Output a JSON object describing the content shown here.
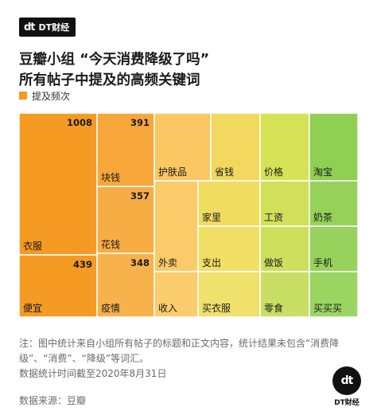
{
  "brand": {
    "mark": "dt",
    "name": "DT财经"
  },
  "chart_data": {
    "type": "treemap",
    "title_lines": [
      "豆瓣小组 “今天消费降级了吗”",
      "所有帖子中提及的高频关键词"
    ],
    "legend": "提及频次",
    "cells": [
      {
        "label": "衣服",
        "value": 1008,
        "value_label": "1008",
        "color": "#f59a23"
      },
      {
        "label": "便宜",
        "value": 439,
        "value_label": "439",
        "color": "#f59a23"
      },
      {
        "label": "块钱",
        "value": 391,
        "value_label": "391",
        "color": "#f7a73a"
      },
      {
        "label": "花钱",
        "value": 357,
        "value_label": "357",
        "color": "#f8ad44"
      },
      {
        "label": "疫情",
        "value": 348,
        "value_label": "348",
        "color": "#f8b24b"
      },
      {
        "label": "护肤品",
        "color": "#fac763"
      },
      {
        "label": "外卖",
        "color": "#fbcb6a"
      },
      {
        "label": "收入",
        "color": "#fbcc6c"
      },
      {
        "label": "省钱",
        "color": "#f3d85f"
      },
      {
        "label": "家里",
        "color": "#f0dd60"
      },
      {
        "label": "支出",
        "color": "#f1df66"
      },
      {
        "label": "买衣服",
        "color": "#f0e06c"
      },
      {
        "label": "价格",
        "color": "#d6e255"
      },
      {
        "label": "工资",
        "color": "#d0e05a"
      },
      {
        "label": "做饭",
        "color": "#cde05e"
      },
      {
        "label": "零食",
        "color": "#c9df63"
      },
      {
        "label": "淘宝",
        "color": "#8fcf52"
      },
      {
        "label": "奶茶",
        "color": "#96d259"
      },
      {
        "label": "手机",
        "color": "#97d35c"
      },
      {
        "label": "买买买",
        "color": "#9ad562"
      }
    ]
  },
  "note": "注：图中统计来自小组所有帖子的标题和正文内容，统计结果未包含“消费降级”、“消费”、“降级”等词汇。",
  "date_note": "数据统计时间截至2020年8月31日",
  "source": "数据来源：豆瓣"
}
